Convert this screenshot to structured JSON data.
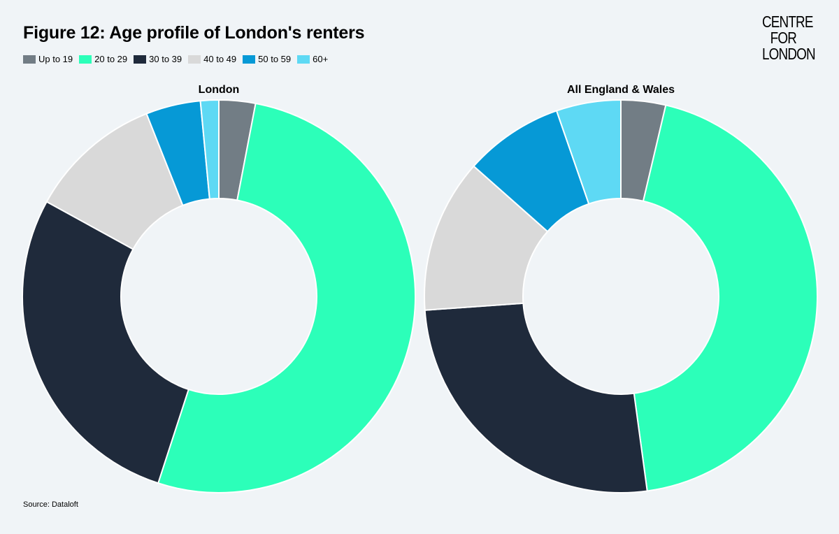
{
  "title": "Figure 12: Age profile of London's renters",
  "logo": {
    "line1": "CENTRE",
    "line2": "FOR",
    "line3": "LONDON"
  },
  "source": "Source: Dataloft",
  "legend": [
    {
      "label": "Up to 19",
      "color": "#727d85"
    },
    {
      "label": "20 to 29",
      "color": "#2cffb9"
    },
    {
      "label": "30 to 39",
      "color": "#1f2a3b"
    },
    {
      "label": "40 to 49",
      "color": "#d9d9d9"
    },
    {
      "label": "50 to 59",
      "color": "#0699d6"
    },
    {
      "label": "60+",
      "color": "#5ed9f4"
    }
  ],
  "chart_data": [
    {
      "type": "pie",
      "subtype": "donut",
      "title": "London",
      "categories": [
        "Up to 19",
        "20 to 29",
        "30 to 39",
        "40 to 49",
        "50 to 59",
        "60+"
      ],
      "values": [
        3,
        52,
        28,
        11,
        4.5,
        1.5
      ],
      "colors": [
        "#727d85",
        "#2cffb9",
        "#1f2a3b",
        "#d9d9d9",
        "#0699d6",
        "#5ed9f4"
      ],
      "legend_position": "top-left"
    },
    {
      "type": "pie",
      "subtype": "donut",
      "title": "All England & Wales",
      "categories": [
        "Up to 19",
        "20 to 29",
        "30 to 39",
        "40 to 49",
        "50 to 59",
        "60+"
      ],
      "values": [
        3.6,
        43.3,
        25.5,
        12.4,
        8.0,
        5.2
      ],
      "colors": [
        "#727d85",
        "#2cffb9",
        "#1f2a3b",
        "#d9d9d9",
        "#0699d6",
        "#5ed9f4"
      ],
      "legend_position": "top-left"
    }
  ]
}
